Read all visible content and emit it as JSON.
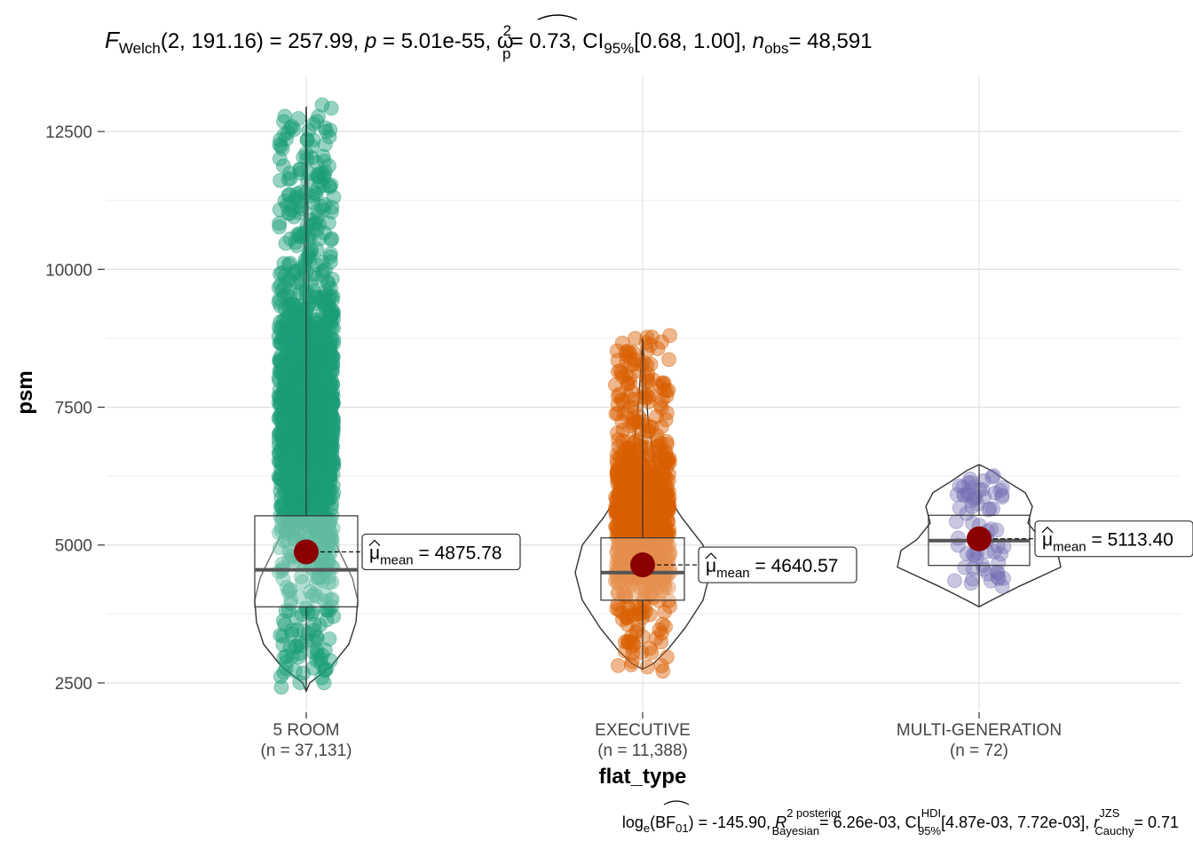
{
  "chart_data": {
    "type": "violin-box-scatter",
    "title": {
      "stat_symbol": "F",
      "stat_sub": "Welch",
      "stat_args": "(2, 191.16)",
      "stat_value": "= 257.99,",
      "p_symbol": "p",
      "p_value": "= 5.01e-55,",
      "es_symbol": "ω",
      "es_sup": "2",
      "es_sub": "p",
      "es_value": "= 0.73, CI",
      "ci_sub": "95%",
      "ci_value": "[0.68, 1.00],",
      "n_symbol": "n",
      "n_sub": "obs",
      "n_value": "= 48,591"
    },
    "xlabel": "flat_type",
    "ylabel": "psm",
    "ylim": [
      2000,
      13500
    ],
    "yticks": [
      2500,
      5000,
      7500,
      10000,
      12500
    ],
    "grid": true,
    "groups": [
      {
        "name": "5 ROOM",
        "n_label": "(n = 37,131)",
        "color": "#1b9e77",
        "min": 2350,
        "max": 13000,
        "q1": 3880,
        "median": 4550,
        "q3": 5530,
        "whisker_low": 2350,
        "whisker_high": 12950,
        "mean": 4875.78,
        "mean_label": "4875.78"
      },
      {
        "name": "EXECUTIVE",
        "n_label": "(n = 11,388)",
        "color": "#d95f02",
        "min": 2700,
        "max": 8800,
        "q1": 4000,
        "median": 4500,
        "q3": 5130,
        "whisker_low": 2750,
        "whisker_high": 8750,
        "mean": 4640.57,
        "mean_label": "4640.57"
      },
      {
        "name": "MULTI-GENERATION",
        "n_label": "(n = 72)",
        "color": "#7570b3",
        "min": 3880,
        "max": 6480,
        "q1": 4630,
        "median": 5080,
        "q3": 5540,
        "whisker_low": 3880,
        "whisker_high": 6460,
        "mean": 5113.4,
        "mean_label": "5113.40"
      }
    ],
    "mean_symbol": "μ",
    "mean_sub": "mean",
    "mean_color": "#8b0000",
    "caption": {
      "log_label": "log",
      "log_sub": "e",
      "bf_label": "(BF",
      "bf_sub": "01",
      "bf_value": ") = -145.90,",
      "r_symbol": "R",
      "r_sup": "2 posterior",
      "r_sub": "Bayesian",
      "r_value": "= 6.26e-03, CI",
      "ci_sup": "HDI",
      "ci_sub": "95%",
      "ci_value": "[4.87e-03, 7.72e-03],",
      "rc_symbol": "r",
      "rc_sup": "JZS",
      "rc_sub": "Cauchy",
      "rc_value": "= 0.71"
    }
  }
}
